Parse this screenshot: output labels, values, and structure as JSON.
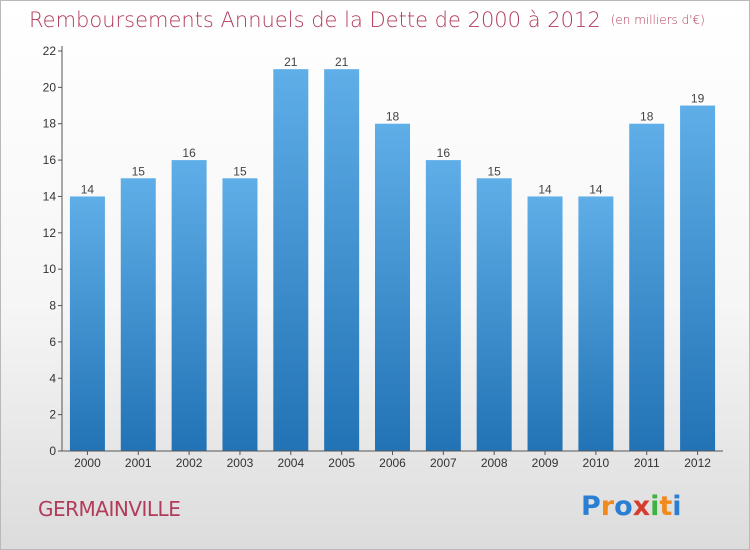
{
  "header": {
    "title": "Remboursements Annuels de la Dette de 2000 à 2012",
    "unit": "(en milliers d'€)"
  },
  "footer": {
    "city": "GERMAINVILLE",
    "brand": "Proxiti",
    "brand_colors": [
      "#2a7fd3",
      "#f08a1c",
      "#2a7fd3",
      "#d63b2f",
      "#3fb13f",
      "#f08a1c",
      "#2a7fd3"
    ]
  },
  "colors": {
    "bar_top": "#5faee8",
    "bar_bottom": "#2273b5",
    "label": "#444444",
    "axis": "#555555"
  },
  "chart_data": {
    "type": "bar",
    "title": "Remboursements Annuels de la Dette de 2000 à 2012",
    "subtitle": "(en milliers d'€)",
    "categories": [
      "2000",
      "2001",
      "2002",
      "2003",
      "2004",
      "2005",
      "2006",
      "2007",
      "2008",
      "2009",
      "2010",
      "2011",
      "2012"
    ],
    "values": [
      14,
      15,
      16,
      15,
      21,
      21,
      18,
      16,
      15,
      14,
      14,
      18,
      19
    ],
    "ylim": [
      0,
      22
    ],
    "yticks": [
      0,
      2,
      4,
      6,
      8,
      10,
      12,
      14,
      16,
      18,
      20,
      22
    ],
    "xlabel": "",
    "ylabel": "",
    "grid": false,
    "data_labels": true
  }
}
